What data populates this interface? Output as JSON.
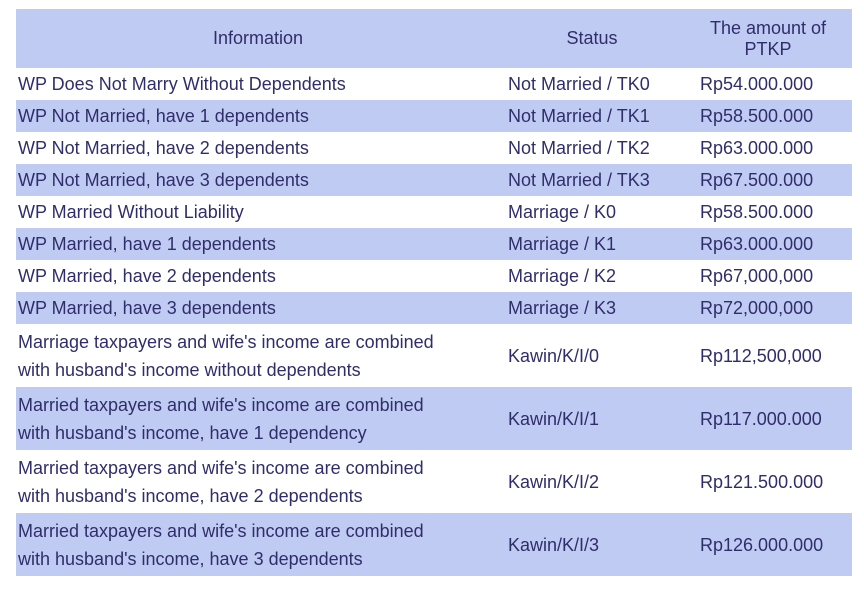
{
  "colors": {
    "header_bg": "#c0cbf3",
    "row_alt_bg": "#c0cbf3",
    "text": "#302e6a",
    "page_bg": "#ffffff"
  },
  "table": {
    "headers": [
      {
        "label": "Information"
      },
      {
        "label": "Status"
      },
      {
        "label": "The amount of",
        "label2": "PTKP"
      }
    ],
    "rows": [
      {
        "info": "WP Does Not Marry Without Dependents",
        "status": "Not Married / TK0",
        "amount": "Rp54.000.000"
      },
      {
        "info": "WP Not Married, have 1 dependents",
        "status": "Not Married / TK1",
        "amount": "Rp58.500.000"
      },
      {
        "info": "WP Not Married, have 2 dependents",
        "status": "Not Married / TK2",
        "amount": "Rp63.000.000"
      },
      {
        "info": "WP Not Married, have 3 dependents",
        "status": "Not Married / TK3",
        "amount": "Rp67.500.000"
      },
      {
        "info": "WP Married Without Liability",
        "status": "Marriage / K0",
        "amount": "Rp58.500.000"
      },
      {
        "info": "WP Married, have 1 dependents",
        "status": "Marriage / K1",
        "amount": "Rp63.000.000"
      },
      {
        "info": "WP Married, have 2 dependents",
        "status": "Marriage / K2",
        "amount": "Rp67,000,000"
      },
      {
        "info": "WP Married, have 3 dependents",
        "status": "Marriage / K3",
        "amount": "Rp72,000,000"
      },
      {
        "info": "Marriage taxpayers and wife's income are combined",
        "info2": "with husband's income without dependents",
        "status": "Kawin/K/I/0",
        "amount": "Rp112,500,000"
      },
      {
        "info": "Married taxpayers and wife's income are combined",
        "info2": "with husband's income, have 1 dependency",
        "status": "Kawin/K/I/1",
        "amount": "Rp117.000.000"
      },
      {
        "info": "Married taxpayers and wife's income are combined",
        "info2": "with husband's income, have 2 dependents",
        "status": "Kawin/K/I/2",
        "amount": "Rp121.500.000"
      },
      {
        "info": "Married taxpayers and wife's income are combined",
        "info2": "with husband's income, have 3 dependents",
        "status": "Kawin/K/I/3",
        "amount": "Rp126.000.000"
      }
    ]
  }
}
